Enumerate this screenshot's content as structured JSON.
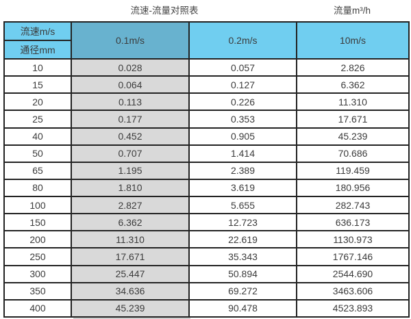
{
  "titles": {
    "main": "流速-流量对照表",
    "unit": "流量m³/h"
  },
  "colors": {
    "header_blue": "#70CEF0",
    "header_blue_dark": "#68B2CF",
    "highlight_gray": "#D9D9D9",
    "border_color": "#222222",
    "text_color": "#3b3b3b",
    "title_color": "#444444"
  },
  "chart_data": {
    "type": "table",
    "title": "流速-流量对照表",
    "unit_header": "流量m³/h",
    "corner_top_label": "流速m/s",
    "corner_bottom_label": "通径mm",
    "columns": [
      "0.1m/s",
      "0.2m/s",
      "10m/s"
    ],
    "highlighted_column": "0.1m/s",
    "diameters_mm": [
      10,
      15,
      20,
      25,
      40,
      50,
      65,
      80,
      100,
      150,
      200,
      250,
      300,
      350,
      400
    ],
    "rows": [
      [
        "10",
        "0.028",
        "0.057",
        "2.826"
      ],
      [
        "15",
        "0.064",
        "0.127",
        "6.362"
      ],
      [
        "20",
        "0.113",
        "0.226",
        "11.310"
      ],
      [
        "25",
        "0.177",
        "0.353",
        "17.671"
      ],
      [
        "40",
        "0.452",
        "0.905",
        "45.239"
      ],
      [
        "50",
        "0.707",
        "1.414",
        "70.686"
      ],
      [
        "65",
        "1.195",
        "2.389",
        "119.459"
      ],
      [
        "80",
        "1.810",
        "3.619",
        "180.956"
      ],
      [
        "100",
        "2.827",
        "5.655",
        "282.743"
      ],
      [
        "150",
        "6.362",
        "12.723",
        "636.173"
      ],
      [
        "200",
        "11.310",
        "22.619",
        "1130.973"
      ],
      [
        "250",
        "17.671",
        "35.343",
        "1767.146"
      ],
      [
        "300",
        "25.447",
        "50.894",
        "2544.690"
      ],
      [
        "350",
        "34.636",
        "69.272",
        "3463.606"
      ],
      [
        "400",
        "45.239",
        "90.478",
        "4523.893"
      ]
    ],
    "series": [
      {
        "name": "0.1m/s",
        "values": [
          0.028,
          0.064,
          0.113,
          0.177,
          0.452,
          0.707,
          1.195,
          1.81,
          2.827,
          6.362,
          11.31,
          17.671,
          25.447,
          34.636,
          45.239
        ]
      },
      {
        "name": "0.2m/s",
        "values": [
          0.057,
          0.127,
          0.226,
          0.353,
          0.905,
          1.414,
          2.389,
          3.619,
          5.655,
          12.723,
          22.619,
          35.343,
          50.894,
          69.272,
          90.478
        ]
      },
      {
        "name": "10m/s",
        "values": [
          2.826,
          6.362,
          11.31,
          17.671,
          45.239,
          70.686,
          119.459,
          180.956,
          282.743,
          636.173,
          1130.973,
          1767.146,
          2544.69,
          3463.606,
          4523.893
        ]
      }
    ]
  }
}
